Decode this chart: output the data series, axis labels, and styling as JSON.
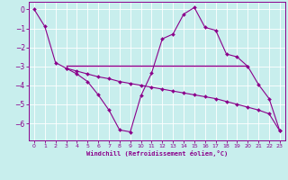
{
  "xlabel": "Windchill (Refroidissement éolien,°C)",
  "background_color": "#c8eeed",
  "line_color": "#8b008b",
  "grid_color": "#ffffff",
  "xlim": [
    -0.5,
    23.5
  ],
  "ylim": [
    -6.9,
    0.4
  ],
  "xticks": [
    0,
    1,
    2,
    3,
    4,
    5,
    6,
    7,
    8,
    9,
    10,
    11,
    12,
    13,
    14,
    15,
    16,
    17,
    18,
    19,
    20,
    21,
    22,
    23
  ],
  "yticks": [
    0,
    -1,
    -2,
    -3,
    -4,
    -5,
    -6
  ],
  "line1_x": [
    0,
    1,
    2,
    3,
    4,
    5,
    6,
    7,
    8,
    9,
    10,
    11,
    12,
    13,
    14,
    15,
    16,
    17,
    18,
    19,
    20,
    21,
    22,
    23
  ],
  "line1_y": [
    0.0,
    -0.9,
    -2.8,
    -3.1,
    -3.4,
    -3.8,
    -4.5,
    -5.3,
    -6.35,
    -6.45,
    -4.55,
    -3.35,
    -1.55,
    -1.3,
    -0.25,
    0.1,
    -0.95,
    -1.1,
    -2.35,
    -2.5,
    -3.0,
    -3.95,
    -4.7,
    -6.4
  ],
  "line2_x": [
    3,
    4,
    5,
    6,
    7,
    8,
    9,
    10,
    11,
    12,
    13,
    14,
    15,
    16,
    17,
    18,
    19,
    20,
    21,
    22,
    23
  ],
  "line2_y": [
    -3.1,
    -3.25,
    -3.4,
    -3.55,
    -3.65,
    -3.8,
    -3.9,
    -4.0,
    -4.1,
    -4.2,
    -4.3,
    -4.4,
    -4.5,
    -4.6,
    -4.7,
    -4.85,
    -5.0,
    -5.15,
    -5.3,
    -5.5,
    -6.4
  ],
  "line3_x": [
    3,
    20
  ],
  "line3_y": [
    -2.95,
    -2.95
  ]
}
